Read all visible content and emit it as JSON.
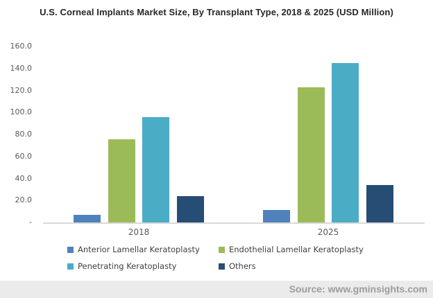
{
  "title": "U.S. Corneal Implants Market Size, By Transplant Type, 2018 & 2025 (USD Million)",
  "footer": {
    "source_label": "Source: www.gminsights.com"
  },
  "colors": {
    "series_blue": "#4F81BD",
    "series_green": "#9BBB59",
    "series_teal": "#4BACC6",
    "series_navy": "#264D73",
    "axis_line": "#D9D9D9",
    "tick_text": "#595959",
    "legend_text": "#404040",
    "footer_bg": "#EBEBEB",
    "footer_text": "#9C9C9C",
    "title_text": "#262626"
  },
  "chart_data": {
    "type": "bar",
    "title": "U.S. Corneal Implants Market Size, By Transplant Type, 2018 & 2025 (USD Million)",
    "categories": [
      "2018",
      "2025"
    ],
    "series": [
      {
        "name": "Anterior Lamellar Keratoplasty",
        "color": "#4F81BD",
        "values": [
          7,
          11.5
        ]
      },
      {
        "name": "Endothelial Lamellar Keratoplasty",
        "color": "#9BBB59",
        "values": [
          75.5,
          123
        ]
      },
      {
        "name": "Penetrating Keratoplasty",
        "color": "#4BACC6",
        "values": [
          96,
          145
        ]
      },
      {
        "name": "Others",
        "color": "#264D73",
        "values": [
          24,
          34
        ]
      }
    ],
    "xlabel": "",
    "ylabel": "",
    "ylim": [
      0,
      160
    ],
    "ytick_interval": 20,
    "ytick_labels_bottom_to_top": [
      "-",
      "20.0",
      "40.0",
      "60.0",
      "80.0",
      "100.0",
      "120.0",
      "140.0",
      "160.0"
    ],
    "grid": false,
    "legend_position": "bottom"
  }
}
